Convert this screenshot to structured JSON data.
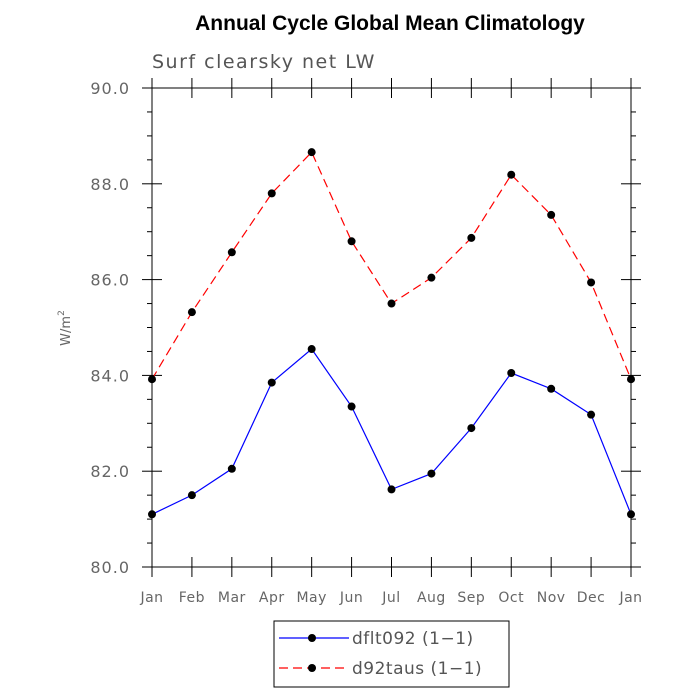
{
  "chart_data": {
    "type": "line",
    "title": "Annual Cycle Global Mean Climatology",
    "subtitle": "Surf clearsky net LW",
    "ylabel": "W/m",
    "ylabel_superscript": "2",
    "xlabel": "",
    "categories": [
      "Jan",
      "Feb",
      "Mar",
      "Apr",
      "May",
      "Jun",
      "Jul",
      "Aug",
      "Sep",
      "Oct",
      "Nov",
      "Dec",
      "Jan"
    ],
    "ylim": [
      80.0,
      90.0
    ],
    "yticks": [
      "80.0",
      "82.0",
      "84.0",
      "86.0",
      "88.0",
      "90.0"
    ],
    "series": [
      {
        "name": "dflt092 (1−1)",
        "color": "#0000ff",
        "dash": "solid",
        "values": [
          81.1,
          81.5,
          82.05,
          83.85,
          84.55,
          83.35,
          81.62,
          81.95,
          82.9,
          84.05,
          83.72,
          83.18,
          81.1
        ]
      },
      {
        "name": "d92taus (1−1)",
        "color": "#ff0000",
        "dash": "dashed",
        "values": [
          83.92,
          85.32,
          86.57,
          87.8,
          88.66,
          86.8,
          85.5,
          86.04,
          86.87,
          88.19,
          87.35,
          85.94,
          83.92
        ]
      }
    ],
    "marker_color": "#000000",
    "legend_location": "bottom-center"
  }
}
